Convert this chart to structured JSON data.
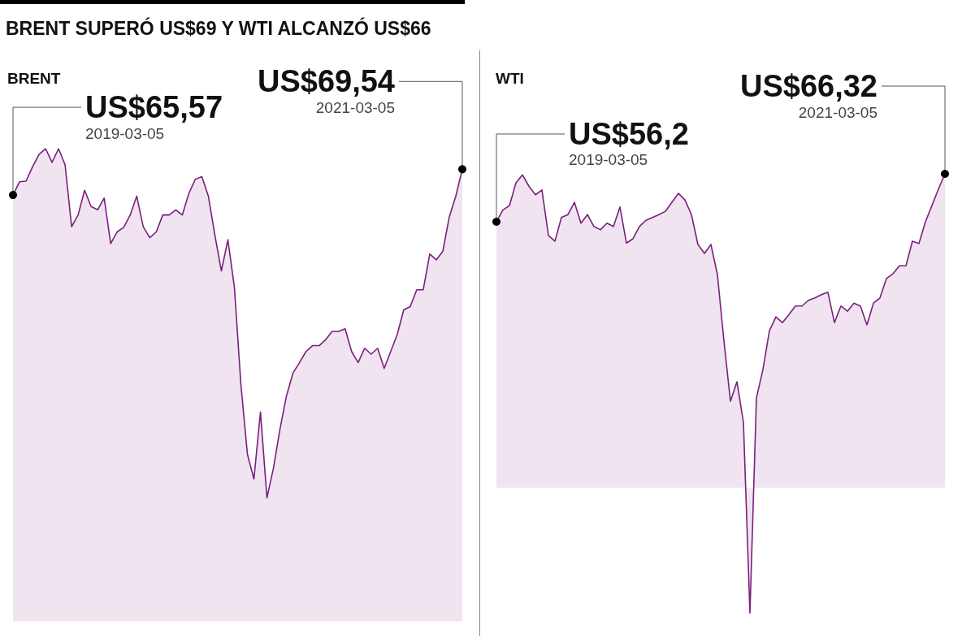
{
  "chart_data": [
    {
      "type": "area",
      "title": "BRENT SUPERÓ US$69 Y WTI ALCANZÓ US$66",
      "subtitle": "BRENT",
      "categories": [
        null,
        null,
        null,
        null,
        null,
        null,
        null,
        null,
        null,
        null,
        null,
        null,
        null,
        null,
        null,
        null,
        null,
        null,
        null,
        null,
        null,
        null,
        null,
        null,
        null,
        null,
        null,
        null,
        null,
        null,
        null,
        null,
        null,
        null,
        null,
        null,
        null,
        null,
        null,
        null,
        null,
        null,
        null,
        null,
        null,
        null,
        null,
        null,
        null,
        null,
        null,
        null,
        null,
        null,
        null,
        null,
        null,
        null,
        null,
        null,
        null,
        null,
        null,
        null,
        null,
        null,
        null,
        null,
        null,
        null
      ],
      "series": [
        {
          "color": "#7b1f7e",
          "values": [
            65.57,
            67.6,
            67.7,
            69.9,
            71.8,
            72.7,
            70.6,
            72.7,
            70.2,
            60.7,
            62.5,
            66.3,
            63.8,
            63.3,
            65.1,
            58.1,
            59.9,
            60.6,
            62.5,
            65.4,
            60.7,
            59.0,
            59.9,
            62.5,
            62.5,
            63.3,
            62.5,
            65.8,
            68.0,
            68.4,
            65.4,
            59.4,
            53.9,
            58.7,
            51.4,
            36.4,
            25.7,
            21.9,
            32.2,
            19.0,
            23.6,
            29.6,
            34.7,
            38.2,
            39.8,
            41.5,
            42.4,
            42.4,
            43.3,
            44.6,
            44.6,
            45.0,
            41.5,
            39.8,
            42.0,
            41.1,
            42.0,
            38.9,
            41.5,
            44.1,
            47.9,
            48.4,
            51.0,
            51.0,
            56.5,
            55.6,
            56.9,
            62.2,
            65.4,
            69.54
          ],
          "value_labels": [
            "US$65,57",
            null,
            null,
            null,
            null,
            null,
            null,
            null,
            null,
            null,
            null,
            null,
            null,
            null,
            null,
            null,
            null,
            null,
            null,
            null,
            null,
            null,
            null,
            null,
            null,
            null,
            null,
            null,
            null,
            null,
            null,
            null,
            null,
            null,
            null,
            null,
            null,
            null,
            null,
            null,
            null,
            null,
            null,
            null,
            null,
            null,
            null,
            null,
            null,
            null,
            null,
            null,
            null,
            null,
            null,
            null,
            null,
            null,
            null,
            null,
            null,
            null,
            null,
            null,
            null,
            null,
            null,
            null,
            null,
            "US$69,54"
          ]
        }
      ],
      "annotations": [
        "2019-03-05",
        "2021-03-05"
      ]
    },
    {
      "type": "area",
      "subtitle": "WTI",
      "categories": [
        null,
        null,
        null,
        null,
        null,
        null,
        null,
        null,
        null,
        null,
        null,
        null,
        null,
        null,
        null,
        null,
        null,
        null,
        null,
        null,
        null,
        null,
        null,
        null,
        null,
        null,
        null,
        null,
        null,
        null,
        null,
        null,
        null,
        null,
        null,
        null,
        null,
        null,
        null,
        null,
        null,
        null,
        null,
        null,
        null,
        null,
        null,
        null,
        null,
        null,
        null,
        null,
        null,
        null,
        null,
        null,
        null,
        null,
        null,
        null,
        null,
        null,
        null,
        null,
        null,
        null,
        null,
        null,
        null,
        null
      ],
      "series": [
        {
          "color": "#7b1f7e",
          "values": [
            56.2,
            58.7,
            59.6,
            64.4,
            66.1,
            63.7,
            61.9,
            62.9,
            53.3,
            52.1,
            57.1,
            57.7,
            60.3,
            55.9,
            57.7,
            55.2,
            54.5,
            55.9,
            55.2,
            59.3,
            51.7,
            52.6,
            55.2,
            56.5,
            57.1,
            57.7,
            58.4,
            60.3,
            62.2,
            60.8,
            57.7,
            51.4,
            49.5,
            51.4,
            45.0,
            31.0,
            18.3,
            22.4,
            13.8,
            -26.5,
            19.0,
            25.0,
            33.2,
            36.1,
            34.9,
            36.6,
            38.4,
            38.4,
            39.6,
            40.1,
            40.8,
            41.3,
            34.9,
            38.4,
            37.3,
            39.0,
            38.4,
            34.4,
            39.0,
            40.1,
            44.2,
            45.2,
            46.9,
            46.9,
            52.1,
            51.6,
            56.2,
            59.6,
            63.1,
            66.32
          ],
          "value_labels": [
            "US$56,2",
            null,
            null,
            null,
            null,
            null,
            null,
            null,
            null,
            null,
            null,
            null,
            null,
            null,
            null,
            null,
            null,
            null,
            null,
            null,
            null,
            null,
            null,
            null,
            null,
            null,
            null,
            null,
            null,
            null,
            null,
            null,
            null,
            null,
            null,
            null,
            null,
            null,
            null,
            null,
            null,
            null,
            null,
            null,
            null,
            null,
            null,
            null,
            null,
            null,
            null,
            null,
            null,
            null,
            null,
            null,
            null,
            null,
            null,
            null,
            null,
            null,
            null,
            null,
            null,
            null,
            null,
            null,
            null,
            "US$66,32"
          ]
        }
      ],
      "annotations": [
        "2019-03-05",
        "2021-03-05"
      ]
    }
  ]
}
